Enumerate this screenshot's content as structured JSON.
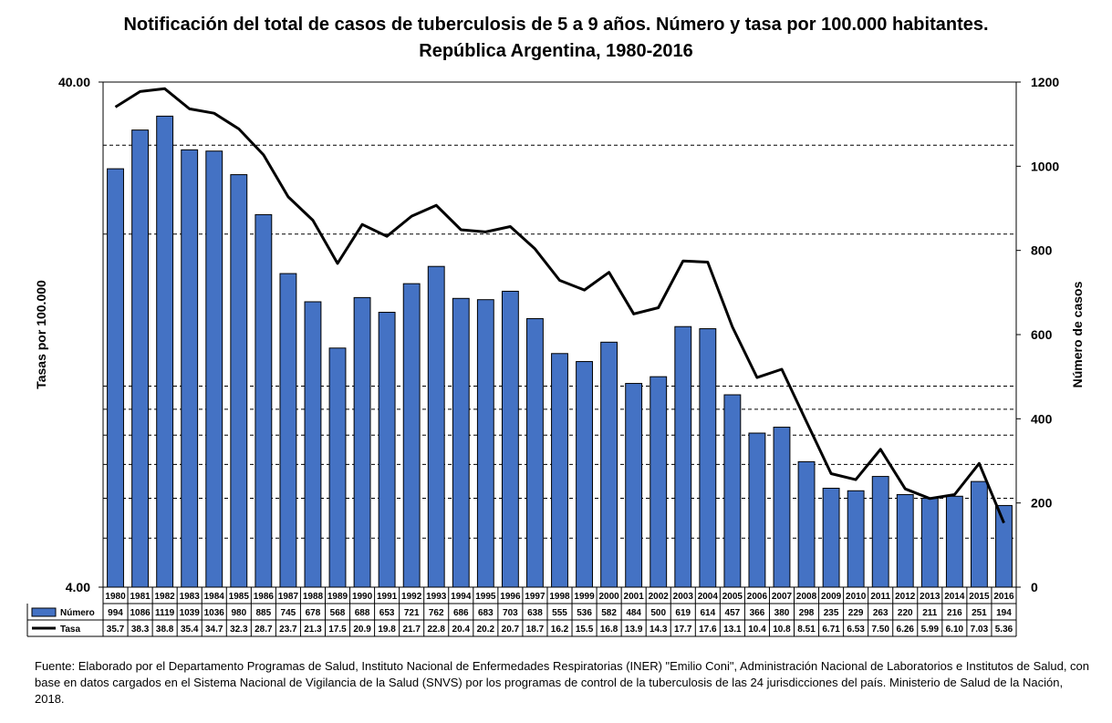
{
  "title_line1": "Notificación del total de casos de tuberculosis de 5 a 9 años. Número y tasa por 100.000 habitantes.",
  "title_line2": "República Argentina, 1980-2016",
  "footer": "Fuente: Elaborado por el Departamento Programas de Salud, Instituto Nacional de Enfermedades Respiratorias (INER) \"Emilio Coni\", Administración Nacional de Laboratorios e Institutos de Salud, con base en datos cargados en el Sistema Nacional de Vigilancia de la Salud (SNVS) por los programas de control de la tuberculosis de las 24 jurisdicciones del país. Ministerio de Salud de la Nación, 2018.",
  "colors": {
    "bar": "#4472C4",
    "line": "#000000",
    "grid": "#000000"
  },
  "chart_data": {
    "type": "bar",
    "categories": [
      "1980",
      "1981",
      "1982",
      "1983",
      "1984",
      "1985",
      "1986",
      "1987",
      "1988",
      "1989",
      "1990",
      "1991",
      "1992",
      "1993",
      "1994",
      "1995",
      "1996",
      "1997",
      "1998",
      "1999",
      "2000",
      "2001",
      "2002",
      "2003",
      "2004",
      "2005",
      "2006",
      "2007",
      "2008",
      "2009",
      "2010",
      "2011",
      "2012",
      "2013",
      "2014",
      "2015",
      "2016"
    ],
    "series": [
      {
        "name": "Número",
        "type": "bar",
        "axis": "right",
        "values": [
          994,
          1086,
          1119,
          1039,
          1036,
          980,
          885,
          745,
          678,
          568,
          688,
          653,
          721,
          762,
          686,
          683,
          703,
          638,
          555,
          536,
          582,
          484,
          500,
          619,
          614,
          457,
          366,
          380,
          298,
          235,
          229,
          263,
          220,
          211,
          216,
          251,
          194
        ]
      },
      {
        "name": "Tasa",
        "type": "line",
        "axis": "left",
        "values": [
          35.7,
          38.3,
          38.8,
          35.4,
          34.7,
          32.3,
          28.7,
          23.7,
          21.3,
          17.5,
          20.9,
          19.8,
          21.7,
          22.8,
          20.4,
          20.2,
          20.7,
          18.7,
          16.2,
          15.5,
          16.8,
          13.9,
          14.3,
          17.7,
          17.6,
          13.1,
          10.4,
          10.8,
          8.51,
          6.71,
          6.53,
          7.5,
          6.26,
          5.99,
          6.1,
          7.03,
          5.36
        ]
      }
    ],
    "table_labels": [
      "1980",
      "1981",
      "1982",
      "1983",
      "1984",
      "1985",
      "1986",
      "1987",
      "1988",
      "1989",
      "1990",
      "1991",
      "1992",
      "1993",
      "1994",
      "1995",
      "1996",
      "1997",
      "1998",
      "1999",
      "2000",
      "2001",
      "2002",
      "2003",
      "2004",
      "2005",
      "2006",
      "2007",
      "2008",
      "2009",
      "2010",
      "2011",
      "2012",
      "2013",
      "2014",
      "2015",
      "2016"
    ],
    "numero_labels": [
      "994",
      "1086",
      "1119",
      "1039",
      "1036",
      "980",
      "885",
      "745",
      "678",
      "568",
      "688",
      "653",
      "721",
      "762",
      "686",
      "683",
      "703",
      "638",
      "555",
      "536",
      "582",
      "484",
      "500",
      "619",
      "614",
      "457",
      "366",
      "380",
      "298",
      "235",
      "229",
      "263",
      "220",
      "211",
      "216",
      "251",
      "194"
    ],
    "tasa_labels": [
      "35.7",
      "38.3",
      "38.8",
      "35.4",
      "34.7",
      "32.3",
      "28.7",
      "23.7",
      "21.3",
      "17.5",
      "20.9",
      "19.8",
      "21.7",
      "22.8",
      "20.4",
      "20.2",
      "20.7",
      "18.7",
      "16.2",
      "15.5",
      "16.8",
      "13.9",
      "14.3",
      "17.7",
      "17.6",
      "13.1",
      "10.4",
      "10.8",
      "8.51",
      "6.71",
      "6.53",
      "7.50",
      "6.26",
      "5.99",
      "6.10",
      "7.03",
      "5.36"
    ],
    "ylabel_left": "Tasas por 100.000",
    "ylabel_right": "Número de casos",
    "left_axis": {
      "scale": "log",
      "ylim": [
        4,
        40
      ],
      "ticks": [
        "4.00",
        "40.00"
      ]
    },
    "right_axis": {
      "scale": "linear",
      "ylim": [
        0,
        1200
      ],
      "ticks": [
        "0",
        "200",
        "400",
        "600",
        "800",
        "1000",
        "1200"
      ]
    },
    "grid": true,
    "legend": "data-table"
  }
}
